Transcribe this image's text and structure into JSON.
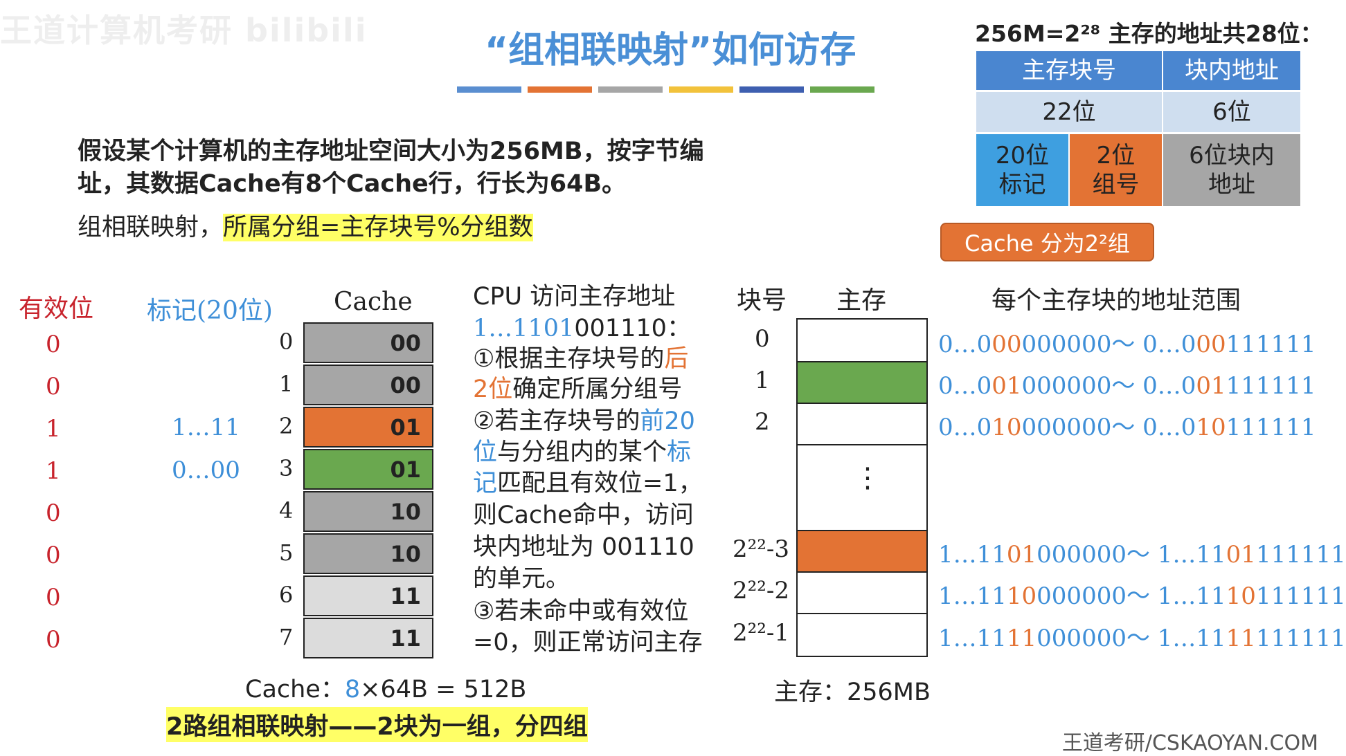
{
  "watermark": "王道计算机考研 bilibili",
  "title": "“组相联映射”如何访存",
  "stripe_colors": [
    "#5a8ed0",
    "#e37334",
    "#a6a6a6",
    "#f2c23b",
    "#3e5fb0",
    "#6aa84f"
  ],
  "intro": {
    "line1": "假设某个计算机的主存地址空间大小为256MB，按字节编",
    "line2": "址，其数据Cache有8个Cache行，行长为64B。",
    "rule_prefix": "组相联映射，",
    "rule_highlight": "所属分组=主存块号%分组数"
  },
  "address": {
    "title": "256M=2²⁸ 主存的地址共28位：",
    "head_block": "主存块号",
    "head_offset": "块内地址",
    "bits_block": "22位",
    "bits_offset": "6位",
    "tag_bits": "20位\n标记",
    "group_bits": "2位\n组号",
    "offset_bits": "6位块内\n地址",
    "callout": "Cache 分为2²组"
  },
  "cache": {
    "valid_header": "有效位",
    "tag_header": "标记(20位)",
    "cache_header": "Cache",
    "valid": [
      "0",
      "0",
      "1",
      "1",
      "0",
      "0",
      "0",
      "0"
    ],
    "tags": [
      "",
      "",
      "1…11",
      "0…00",
      "",
      "",
      "",
      ""
    ],
    "index": [
      "0",
      "1",
      "2",
      "3",
      "4",
      "5",
      "6",
      "7"
    ],
    "groups": [
      "00",
      "00",
      "01",
      "01",
      "10",
      "10",
      "11",
      "11"
    ],
    "colors": [
      "#a6a6a6",
      "#a6a6a6",
      "#e37334",
      "#6aa84f",
      "#a6a6a6",
      "#a6a6a6",
      "#dcdcdc",
      "#dcdcdc"
    ],
    "size_prefix": "Cache：",
    "size_count": "8",
    "size_rest": "×64B = 512B"
  },
  "steps": {
    "line1": "CPU 访问主存地址",
    "addr_a": "1…1101",
    "addr_b": "001110",
    "addr_c": "：",
    "s1a": "①根据主存块号的",
    "s1b": "后",
    "s1c": "2位",
    "s1d": "确定所属分组号",
    "s2a": "②若主存块号的",
    "s2b": "前20",
    "s2c": "位",
    "s2d": "与分组内的某个",
    "s2e": "标",
    "s2f": "记",
    "s2g": "匹配且有效位=1，",
    "s2h": "则Cache命中，访问",
    "s2i": "块内地址为 001110",
    "s2j": "的单元。",
    "s3a": "③若未命中或有效位",
    "s3b": "=0，则正常访问主存"
  },
  "memory": {
    "block_header": "块号",
    "mem_header": "主存",
    "range_header": "每个主存块的地址范围",
    "block_nums": [
      "0",
      "1",
      "2",
      "2²²-3",
      "2²²-2",
      "2²²-1"
    ],
    "ellipsis": "⋮",
    "cell_colors": [
      "#ffffff",
      "#6aa84f",
      "#ffffff",
      "#e37334",
      "#ffffff",
      "#ffffff"
    ],
    "ranges": [
      {
        "p1": "0…0",
        "p2": "00",
        "p3": "000000～ 0…0",
        "p4": "00",
        "p5": "111111"
      },
      {
        "p1": "0…0",
        "p2": "01",
        "p3": "000000～ 0…0",
        "p4": "01",
        "p5": "111111"
      },
      {
        "p1": "0…0",
        "p2": "10",
        "p3": "000000～ 0…0",
        "p4": "10",
        "p5": "111111"
      },
      {
        "p1": "1…11",
        "p2": "01",
        "p3": "000000～ 1…11",
        "p4": "01",
        "p5": "111111"
      },
      {
        "p1": "1…11",
        "p2": "10",
        "p3": "000000～ 1…11",
        "p4": "10",
        "p5": "111111"
      },
      {
        "p1": "1…11",
        "p2": "11",
        "p3": "000000～ 1…11",
        "p4": "11",
        "p5": "111111"
      }
    ],
    "size_label": "主存：256MB"
  },
  "footer": {
    "note": "2路组相联映射——2块为一组，分四组",
    "brand": "王道考研/CSKAOYAN.COM"
  }
}
